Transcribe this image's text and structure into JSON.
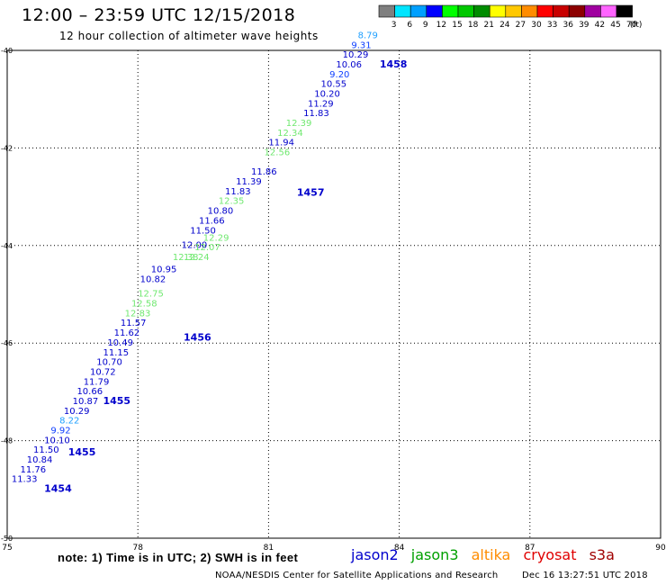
{
  "header": {
    "title": "12:00 – 23:59 UTC 12/15/2018",
    "subtitle": "12 hour collection of altimeter wave heights"
  },
  "legend": {
    "unit": "(ft)",
    "bins": [
      {
        "label": "3",
        "color": "#7f7f7f"
      },
      {
        "label": "6",
        "color": "#00e5ff"
      },
      {
        "label": "9",
        "color": "#00a0ff"
      },
      {
        "label": "12",
        "color": "#0000ff"
      },
      {
        "label": "15",
        "color": "#00ff00"
      },
      {
        "label": "18",
        "color": "#00c800"
      },
      {
        "label": "21",
        "color": "#008c00"
      },
      {
        "label": "24",
        "color": "#ffff00"
      },
      {
        "label": "27",
        "color": "#ffc800"
      },
      {
        "label": "30",
        "color": "#ff8c00"
      },
      {
        "label": "33",
        "color": "#ff0000"
      },
      {
        "label": "36",
        "color": "#c80000"
      },
      {
        "label": "39",
        "color": "#8c0000"
      },
      {
        "label": "42",
        "color": "#a000a0"
      },
      {
        "label": "45",
        "color": "#ff64ff"
      },
      {
        "label": "70",
        "color": "#000000"
      }
    ]
  },
  "footer": {
    "note": "note:  1) Time is in UTC;  2) SWH is in feet",
    "satellites": [
      {
        "name": "jason2",
        "color": "#0000cc"
      },
      {
        "name": "jason3",
        "color": "#00a000"
      },
      {
        "name": "altika",
        "color": "#ff8c00"
      },
      {
        "name": "cryosat",
        "color": "#e00000"
      },
      {
        "name": "s3a",
        "color": "#a00000"
      }
    ],
    "credit": "NOAA/NESDIS Center for Satellite Applications and Research",
    "timestamp": "Dec 16 13:27:51 UTC 2018"
  },
  "colors": {
    "jason2_dark": "#0000cc",
    "jason2_mid": "#1040ff",
    "jason2_light": "#20a0ff",
    "jason3_light": "#70e870",
    "time_label": "#0000cc"
  },
  "chart_data": {
    "type": "scatter",
    "title": "12:00 – 23:59 UTC 12/15/2018",
    "subtitle": "12 hour collection of altimeter wave heights",
    "xlabel": "",
    "ylabel": "",
    "xlim": [
      75,
      90
    ],
    "ylim": [
      -50,
      -40
    ],
    "x_ticks": [
      75,
      78,
      81,
      84,
      87,
      90
    ],
    "y_ticks": [
      -40,
      -42,
      -44,
      -46,
      -48,
      -50
    ],
    "x_tick_labels": [
      "75",
      "78",
      "81",
      "84",
      "87",
      "90"
    ],
    "y_tick_labels": [
      "-40",
      "-42",
      "-44",
      "-46",
      "-48",
      "-50"
    ],
    "grid": true,
    "grid_style": "dotted",
    "series": [
      {
        "name": "jason2",
        "color": "#0000cc",
        "points": [
          {
            "lon": 75.1,
            "lat": -48.85,
            "swh": "11.33",
            "shade": "dark"
          },
          {
            "lon": 75.3,
            "lat": -48.65,
            "swh": "11.76",
            "shade": "dark"
          },
          {
            "lon": 75.45,
            "lat": -48.45,
            "swh": "10.84",
            "shade": "dark"
          },
          {
            "lon": 75.6,
            "lat": -48.25,
            "swh": "11.50",
            "shade": "dark"
          },
          {
            "lon": 75.85,
            "lat": -48.05,
            "swh": "10.10",
            "shade": "dark"
          },
          {
            "lon": 76.0,
            "lat": -47.85,
            "swh": "9.92",
            "shade": "mid"
          },
          {
            "lon": 76.2,
            "lat": -47.65,
            "swh": "8.22",
            "shade": "light"
          },
          {
            "lon": 76.3,
            "lat": -47.45,
            "swh": "10.29",
            "shade": "dark"
          },
          {
            "lon": 76.5,
            "lat": -47.25,
            "swh": "10.87",
            "shade": "dark"
          },
          {
            "lon": 76.6,
            "lat": -47.05,
            "swh": "10.66",
            "shade": "dark"
          },
          {
            "lon": 76.75,
            "lat": -46.85,
            "swh": "11.79",
            "shade": "dark"
          },
          {
            "lon": 76.9,
            "lat": -46.65,
            "swh": "10.72",
            "shade": "dark"
          },
          {
            "lon": 77.05,
            "lat": -46.45,
            "swh": "10.70",
            "shade": "dark"
          },
          {
            "lon": 77.2,
            "lat": -46.25,
            "swh": "11.15",
            "shade": "dark"
          },
          {
            "lon": 77.3,
            "lat": -46.05,
            "swh": "10.49",
            "shade": "dark"
          },
          {
            "lon": 77.45,
            "lat": -45.85,
            "swh": "11.62",
            "shade": "dark"
          },
          {
            "lon": 77.6,
            "lat": -45.65,
            "swh": "11.57",
            "shade": "dark"
          },
          {
            "lon": 78.05,
            "lat": -44.75,
            "swh": "10.82",
            "shade": "dark"
          },
          {
            "lon": 78.3,
            "lat": -44.55,
            "swh": "10.95",
            "shade": "dark"
          },
          {
            "lon": 79.0,
            "lat": -44.05,
            "swh": "12.00",
            "shade": "dark"
          },
          {
            "lon": 79.2,
            "lat": -43.75,
            "swh": "11.50",
            "shade": "dark"
          },
          {
            "lon": 79.4,
            "lat": -43.55,
            "swh": "11.66",
            "shade": "dark"
          },
          {
            "lon": 79.6,
            "lat": -43.35,
            "swh": "10.80",
            "shade": "dark"
          },
          {
            "lon": 80.0,
            "lat": -42.95,
            "swh": "11.83",
            "shade": "dark"
          },
          {
            "lon": 80.25,
            "lat": -42.75,
            "swh": "11.39",
            "shade": "dark"
          },
          {
            "lon": 80.6,
            "lat": -42.55,
            "swh": "11.86",
            "shade": "dark"
          },
          {
            "lon": 81.0,
            "lat": -41.95,
            "swh": "11.94",
            "shade": "dark"
          },
          {
            "lon": 81.8,
            "lat": -41.35,
            "swh": "11.83",
            "shade": "dark"
          },
          {
            "lon": 81.9,
            "lat": -41.15,
            "swh": "11.29",
            "shade": "dark"
          },
          {
            "lon": 82.05,
            "lat": -40.95,
            "swh": "10.20",
            "shade": "dark"
          },
          {
            "lon": 82.2,
            "lat": -40.75,
            "swh": "10.55",
            "shade": "dark"
          },
          {
            "lon": 82.4,
            "lat": -40.55,
            "swh": "9.20",
            "shade": "mid"
          },
          {
            "lon": 82.55,
            "lat": -40.35,
            "swh": "10.06",
            "shade": "dark"
          },
          {
            "lon": 82.7,
            "lat": -40.15,
            "swh": "10.29",
            "shade": "dark"
          },
          {
            "lon": 82.9,
            "lat": -39.95,
            "swh": "9.31",
            "shade": "mid"
          },
          {
            "lon": 83.05,
            "lat": -39.75,
            "swh": "8.79",
            "shade": "light"
          }
        ]
      },
      {
        "name": "jason3",
        "color": "#70e870",
        "points": [
          {
            "lon": 77.7,
            "lat": -45.45,
            "swh": "12.83",
            "shade": "light"
          },
          {
            "lon": 77.85,
            "lat": -45.25,
            "swh": "12.58",
            "shade": "light"
          },
          {
            "lon": 78.0,
            "lat": -45.05,
            "swh": "12.75",
            "shade": "light"
          },
          {
            "lon": 78.8,
            "lat": -44.3,
            "swh": "12.38",
            "shade": "light"
          },
          {
            "lon": 79.05,
            "lat": -44.3,
            "swh": "12.24",
            "shade": "light"
          },
          {
            "lon": 79.3,
            "lat": -44.1,
            "swh": "12.07",
            "shade": "light"
          },
          {
            "lon": 79.5,
            "lat": -43.9,
            "swh": "12.29",
            "shade": "light"
          },
          {
            "lon": 79.85,
            "lat": -43.15,
            "swh": "12.35",
            "shade": "light"
          },
          {
            "lon": 80.9,
            "lat": -42.15,
            "swh": "12.56",
            "shade": "light"
          },
          {
            "lon": 81.2,
            "lat": -41.75,
            "swh": "12.34",
            "shade": "light"
          },
          {
            "lon": 81.4,
            "lat": -41.55,
            "swh": "12.39",
            "shade": "light"
          }
        ]
      }
    ],
    "time_labels": [
      {
        "lon": 75.85,
        "lat": -49.05,
        "text": "1454"
      },
      {
        "lon": 76.4,
        "lat": -48.3,
        "text": "1455"
      },
      {
        "lon": 77.2,
        "lat": -47.25,
        "text": "1455"
      },
      {
        "lon": 79.05,
        "lat": -45.95,
        "text": "1456"
      },
      {
        "lon": 81.65,
        "lat": -42.98,
        "text": "1457"
      },
      {
        "lon": 83.55,
        "lat": -40.35,
        "text": "1458"
      }
    ]
  }
}
